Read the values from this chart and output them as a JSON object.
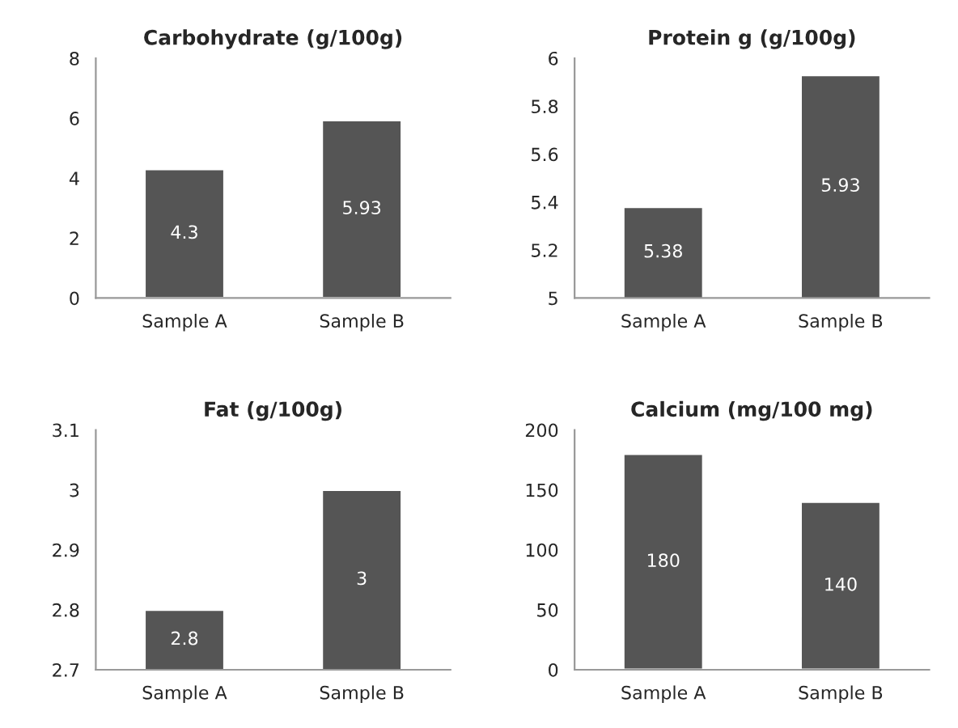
{
  "chart_data": [
    {
      "type": "bar",
      "title": "Carbohydrate (g/100g)",
      "categories": [
        "Sample A",
        "Sample B"
      ],
      "values": [
        4.3,
        5.93
      ],
      "color": "#555555",
      "ylim": [
        0,
        8
      ],
      "yticks": [
        0,
        2,
        4,
        6,
        8
      ],
      "data_labels": true
    },
    {
      "type": "bar",
      "title": "Protein g (g/100g)",
      "categories": [
        "Sample A",
        "Sample B"
      ],
      "values": [
        5.38,
        5.93
      ],
      "color": "#555555",
      "ylim": [
        5,
        6
      ],
      "yticks": [
        5,
        5.2,
        5.4,
        5.6,
        5.8,
        6
      ],
      "data_labels": true
    },
    {
      "type": "bar",
      "title": "Fat (g/100g)",
      "categories": [
        "Sample A",
        "Sample B"
      ],
      "values": [
        2.8,
        3
      ],
      "color": "#555555",
      "ylim": [
        2.7,
        3.1
      ],
      "yticks": [
        2.7,
        2.8,
        2.9,
        3,
        3.1
      ],
      "data_labels": true
    },
    {
      "type": "bar",
      "title": "Calcium (mg/100 mg)",
      "categories": [
        "Sample A",
        "Sample B"
      ],
      "values": [
        180,
        140
      ],
      "color": "#555555",
      "ylim": [
        0,
        200
      ],
      "yticks": [
        0,
        50,
        100,
        150,
        200
      ],
      "data_labels": true
    }
  ]
}
